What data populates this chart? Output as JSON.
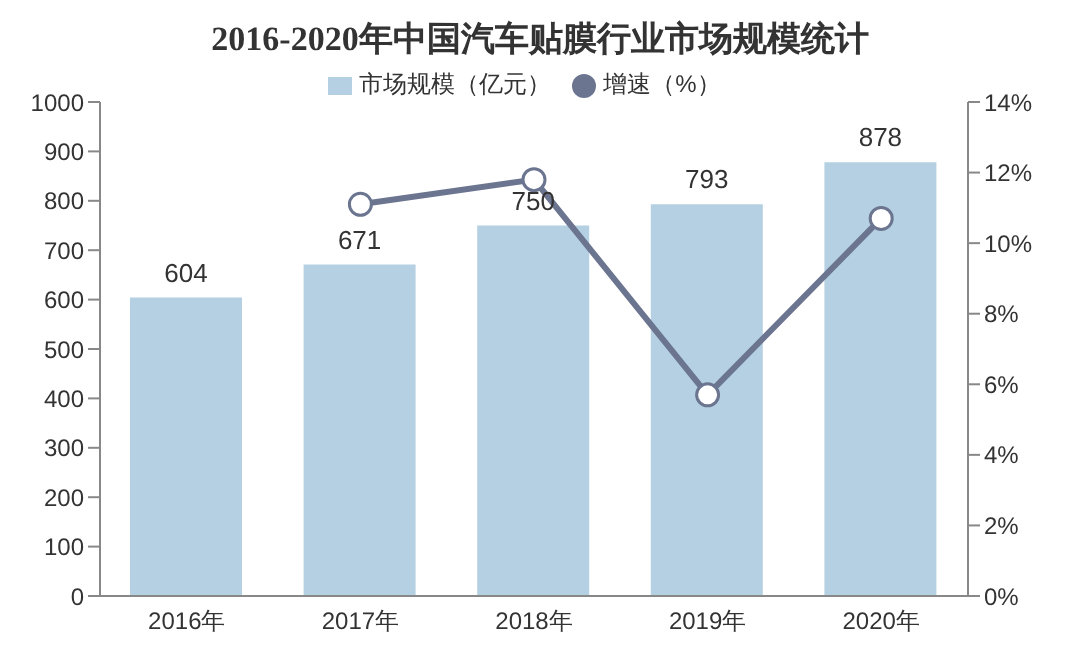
{
  "chart_data": {
    "type": "bar",
    "title": "2016-2020年中国汽车贴膜行业市场规模统计",
    "categories": [
      "2016年",
      "2017年",
      "2018年",
      "2019年",
      "2020年"
    ],
    "series": [
      {
        "name": "市场规模（亿元）",
        "color": "#b4d0e2",
        "values": [
          604,
          671,
          750,
          793,
          878
        ],
        "value_labels": [
          "604",
          "671",
          "750",
          "793",
          "878"
        ]
      },
      {
        "name": "增速（%）",
        "type": "line",
        "axis": "y2",
        "color": "#6b7590",
        "values": [
          null,
          11.1,
          11.8,
          5.7,
          10.7
        ]
      }
    ],
    "ylim": [
      0,
      1000
    ],
    "yticks": [
      0,
      100,
      200,
      300,
      400,
      500,
      600,
      700,
      800,
      900,
      1000
    ],
    "y2lim": [
      0,
      14
    ],
    "y2ticks": [
      {
        "value": 0,
        "label": "0%"
      },
      {
        "value": 2,
        "label": "2%"
      },
      {
        "value": 4,
        "label": "4%"
      },
      {
        "value": 6,
        "label": "6%"
      },
      {
        "value": 8,
        "label": "8%"
      },
      {
        "value": 10,
        "label": "10%"
      },
      {
        "value": 12,
        "label": "12%"
      },
      {
        "value": 14,
        "label": "14%"
      }
    ],
    "legend": "top",
    "marker": "circle",
    "grid": false
  }
}
